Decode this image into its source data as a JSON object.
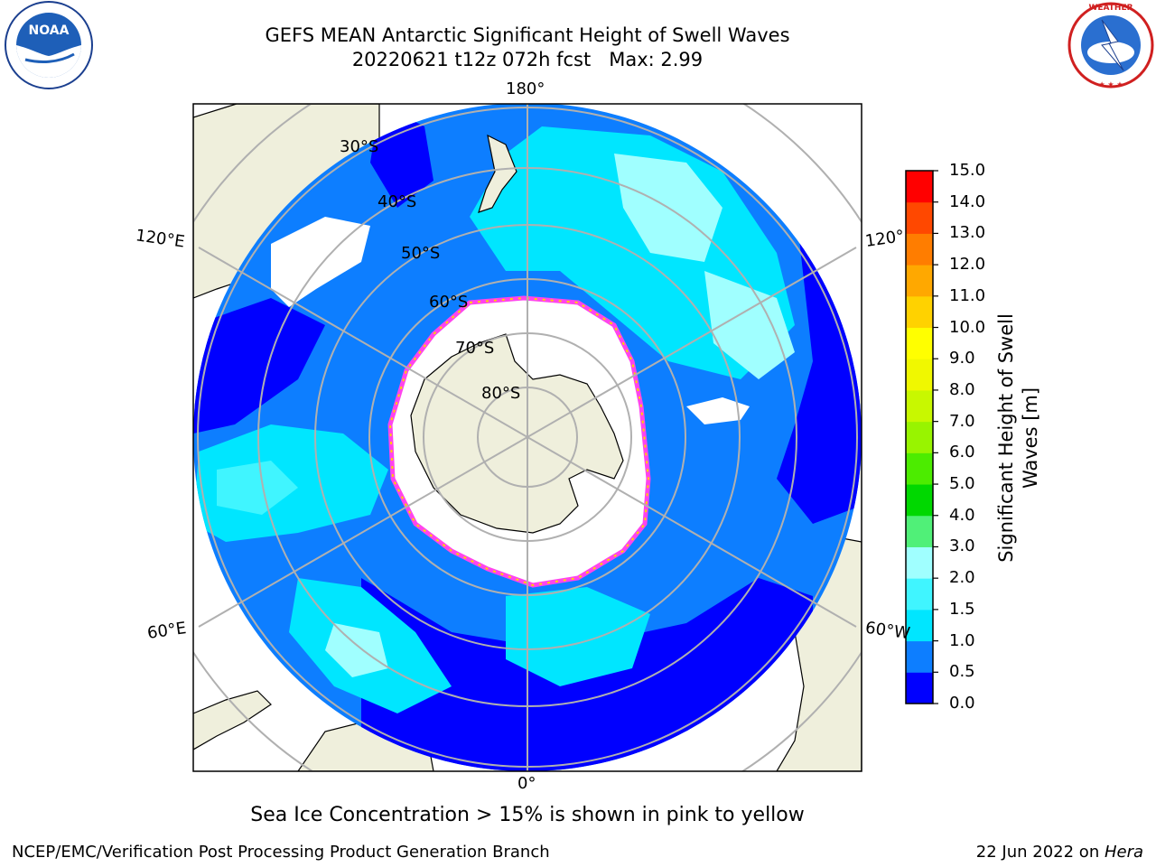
{
  "header": {
    "title": "GEFS MEAN Antarctic Significant Height of Swell Waves",
    "subtitle": "20220621 t12z 072h fcst   Max: 2.99"
  },
  "logos": {
    "left": {
      "name": "NOAA",
      "ring_text": "NATIONAL OCEANIC AND ATMOSPHERIC ADMINISTRATION · U.S. DEPARTMENT OF COMMERCE"
    },
    "right": {
      "name": "NATIONAL WEATHER SERVICE"
    }
  },
  "map": {
    "projection": "south polar stereographic",
    "lat_labels": [
      "30°S",
      "40°S",
      "50°S",
      "60°S",
      "70°S",
      "80°S"
    ],
    "lon_labels": {
      "top": "180°",
      "bottom": "0°",
      "upper_left": "120°E",
      "upper_right": "120°",
      "lower_left": "60°E",
      "lower_right": "60°W"
    },
    "colors": {
      "land": "#efefdc",
      "ice": "#ffffff",
      "grid": "#b0b0b0",
      "ice_edge": "#ff44ee"
    }
  },
  "colorbar": {
    "label_line1": "Significant Height of Swell",
    "label_line2": "Waves [m]",
    "ticks": [
      "0.0",
      "0.5",
      "1.0",
      "1.5",
      "2.0",
      "3.0",
      "4.0",
      "5.0",
      "6.0",
      "7.0",
      "8.0",
      "9.0",
      "10.0",
      "11.0",
      "12.0",
      "13.0",
      "14.0",
      "15.0"
    ],
    "colors": [
      "#0000ff",
      "#0d7eff",
      "#00e6ff",
      "#40f5ff",
      "#a0ffff",
      "#50f078",
      "#00d800",
      "#4cec00",
      "#98f400",
      "#c8f800",
      "#f0f800",
      "#ffff00",
      "#ffd200",
      "#ffa800",
      "#ff7d00",
      "#ff4800",
      "#ff0000"
    ]
  },
  "notes": {
    "sea_ice": "Sea Ice Concentration > 15% is shown in pink to yellow"
  },
  "footer": {
    "left": "NCEP/EMC/Verification Post Processing Product Generation Branch",
    "date": "22 Jun 2022 on ",
    "host": "Hera"
  }
}
